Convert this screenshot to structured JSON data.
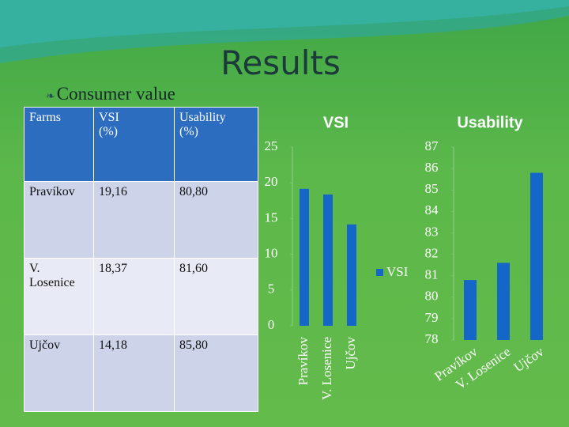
{
  "title": "Results",
  "subtitle": "Consumer value",
  "table": {
    "header": [
      "Farms",
      "VSI\n(%)",
      "Usability\n(%)"
    ],
    "rows": [
      [
        "Pravíkov",
        "19,16",
        "80,80"
      ],
      [
        "V. Losenice",
        "18,37",
        "81,60"
      ],
      [
        "Ujčov",
        "14,18",
        "85,80"
      ]
    ]
  },
  "chart_data": [
    {
      "type": "bar",
      "title": "VSI",
      "categories": [
        "Pravíkov",
        "V. Losenice",
        "Ujčov"
      ],
      "series": [
        {
          "name": "VSI",
          "color": "#1466c8",
          "values": [
            19.16,
            18.37,
            14.18
          ]
        }
      ],
      "ylim": [
        0,
        25
      ],
      "yticks": [
        0,
        5,
        10,
        15,
        20,
        25
      ],
      "legend": "right"
    },
    {
      "type": "bar",
      "title": "Usability",
      "categories": [
        "Pravíkov",
        "V. Losenice",
        "Ujčov"
      ],
      "series": [
        {
          "color": "#1466c8",
          "values": [
            80.8,
            81.6,
            85.8
          ]
        }
      ],
      "ylim": [
        78,
        87
      ],
      "yticks": [
        78,
        79,
        80,
        81,
        82,
        83,
        84,
        85,
        86,
        87
      ]
    }
  ]
}
